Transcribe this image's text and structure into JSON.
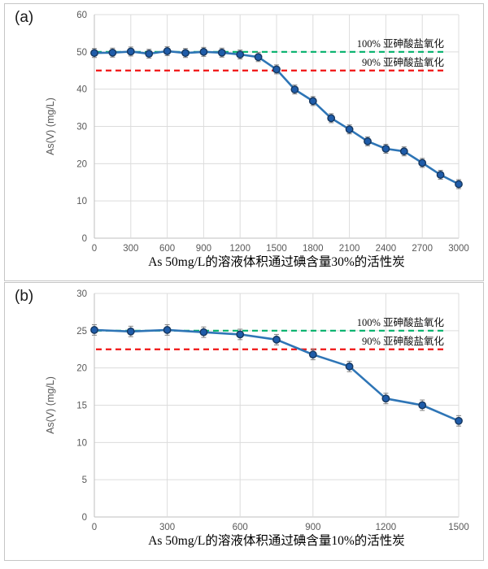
{
  "panels": [
    {
      "label": "(a)",
      "caption": "As 50mg/L的溶液体积通过碘含量30%的活性炭"
    },
    {
      "label": "(b)",
      "caption": "As 50mg/L的溶液体积通过碘含量10%的活性炭"
    }
  ],
  "colors": {
    "series_line": "#2E75B6",
    "marker_fill": "#1F5CA9",
    "marker_edge": "#17375E",
    "error_bar": "#7F7F7F",
    "grid": "#DCDCDC",
    "axis_line": "#BFBFBF",
    "tick_text": "#595959",
    "ref_green": "#00B06A",
    "ref_red": "#F01414"
  },
  "chart_data": [
    {
      "type": "line",
      "title": "",
      "xlabel": "As 50mg/L的溶液体积通过碘含量30%的活性炭",
      "ylabel": "As(V)  (mg/L)",
      "x": [
        0,
        150,
        300,
        450,
        600,
        750,
        900,
        1050,
        1200,
        1350,
        1500,
        1650,
        1800,
        1950,
        2100,
        2250,
        2400,
        2550,
        2700,
        2850,
        3000
      ],
      "y": [
        49.7,
        49.8,
        50.1,
        49.5,
        50.2,
        49.7,
        50.0,
        49.8,
        49.3,
        48.6,
        45.3,
        39.9,
        36.8,
        32.2,
        29.2,
        26.0,
        24.0,
        23.3,
        20.2,
        17.0,
        14.5
      ],
      "error": 1.2,
      "xlim": [
        0,
        3000
      ],
      "ylim": [
        0,
        60
      ],
      "xtick_step": 300,
      "ytick_step": 10,
      "grid": true,
      "legend_position": "none",
      "reference_lines": [
        {
          "value": 50,
          "color": "#00B06A",
          "label": "100% 亚砷酸盐氧化"
        },
        {
          "value": 45,
          "color": "#F01414",
          "label": "90% 亚砷酸盐氧化"
        }
      ]
    },
    {
      "type": "line",
      "title": "",
      "xlabel": "As 50mg/L的溶液体积通过碘含量10%的活性炭",
      "ylabel": "As(V)  (mg/L)",
      "x": [
        0,
        150,
        300,
        450,
        600,
        750,
        900,
        1050,
        1200,
        1350,
        1500
      ],
      "y": [
        25.1,
        24.9,
        25.1,
        24.8,
        24.5,
        23.8,
        21.8,
        20.2,
        15.9,
        15.0,
        12.9
      ],
      "error": 0.7,
      "xlim": [
        0,
        1500
      ],
      "ylim": [
        0,
        30
      ],
      "xtick_step": 300,
      "ytick_step": 5,
      "grid": true,
      "legend_position": "none",
      "reference_lines": [
        {
          "value": 25,
          "color": "#00B06A",
          "label": "100% 亚砷酸盐氧化"
        },
        {
          "value": 22.5,
          "color": "#F01414",
          "label": "90% 亚砷酸盐氧化"
        }
      ]
    }
  ]
}
